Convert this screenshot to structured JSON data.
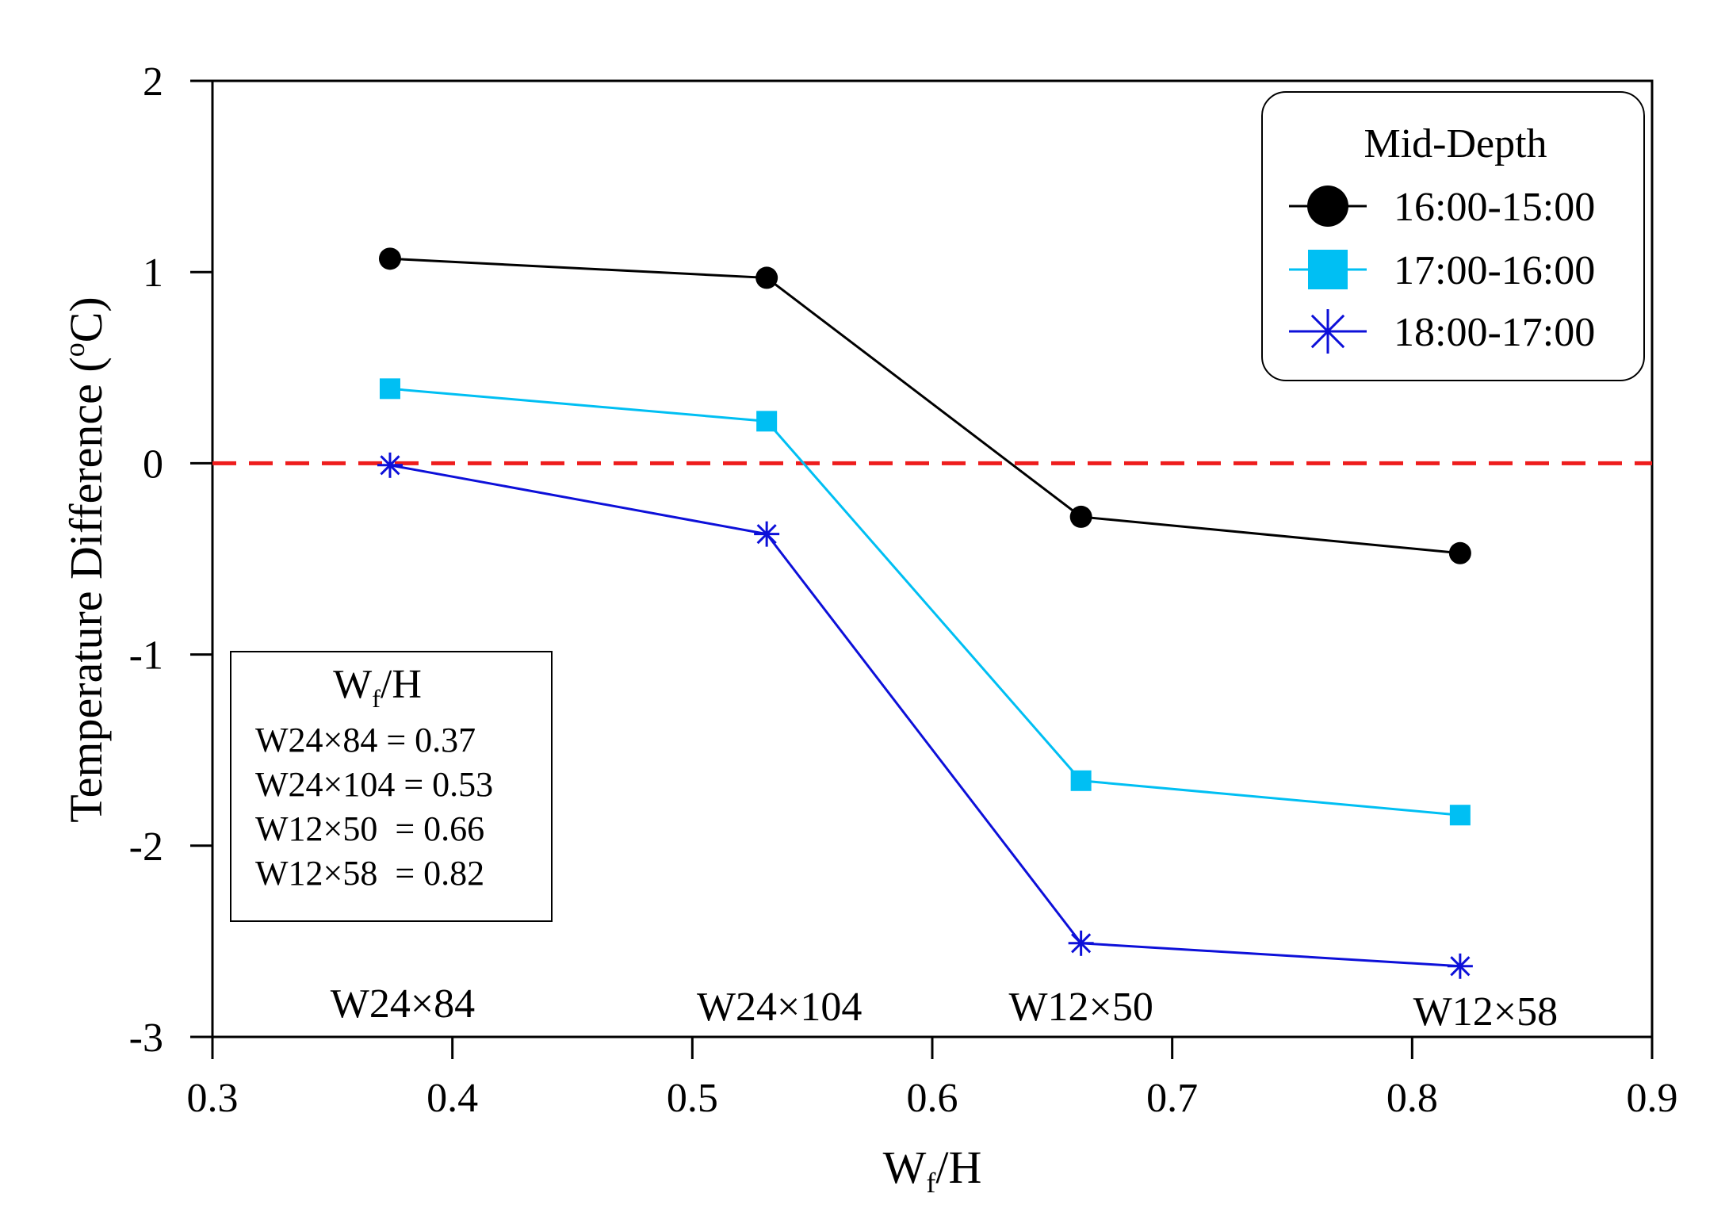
{
  "chart_data": {
    "type": "line",
    "xlabel": {
      "main": "W",
      "sub": "f",
      "rest": "/H"
    },
    "ylabel": {
      "main": "Temperature Difference (",
      "sup": "o",
      "rest": "C)"
    },
    "xlim": [
      0.3,
      0.9
    ],
    "ylim": [
      -3,
      2
    ],
    "xticks": [
      0.3,
      0.4,
      0.5,
      0.6,
      0.7,
      0.8,
      0.9
    ],
    "xtick_labels": [
      "0.3",
      "0.4",
      "0.5",
      "0.6",
      "0.7",
      "0.8",
      "0.9"
    ],
    "yticks": [
      -3,
      -2,
      -1,
      0,
      1,
      2
    ],
    "ytick_labels": [
      "-3",
      "-2",
      "-1",
      "0",
      "1",
      "2"
    ],
    "reference_line": {
      "y": 0,
      "color": "#ee1c1c",
      "style": "dashed"
    },
    "x": [
      0.374,
      0.531,
      0.662,
      0.82
    ],
    "series": [
      {
        "name": "16:00-15:00",
        "color": "#000000",
        "marker": "circle",
        "values": [
          1.07,
          0.97,
          -0.28,
          -0.47
        ]
      },
      {
        "name": "17:00-16:00",
        "color": "#00bff3",
        "marker": "square",
        "values": [
          0.39,
          0.22,
          -1.66,
          -1.84
        ]
      },
      {
        "name": "18:00-17:00",
        "color": "#0d10d9",
        "marker": "asterisk",
        "values": [
          -0.01,
          -0.37,
          -2.51,
          -2.63
        ]
      }
    ],
    "legend": {
      "title": "Mid-Depth",
      "placement": "top-right"
    },
    "point_labels": [
      {
        "text": "W24×84",
        "x": 0.374
      },
      {
        "text": "W24×104",
        "x": 0.531
      },
      {
        "text": "W12×50",
        "x": 0.662
      },
      {
        "text": "W12×58",
        "x": 0.82
      }
    ],
    "annotation_box": {
      "title": {
        "main": "W",
        "sub": "f",
        "rest": "/H"
      },
      "lines": [
        "W24×84 = 0.37",
        "W24×104 = 0.53",
        "W12×50  = 0.66",
        "W12×58  = 0.82"
      ]
    }
  }
}
